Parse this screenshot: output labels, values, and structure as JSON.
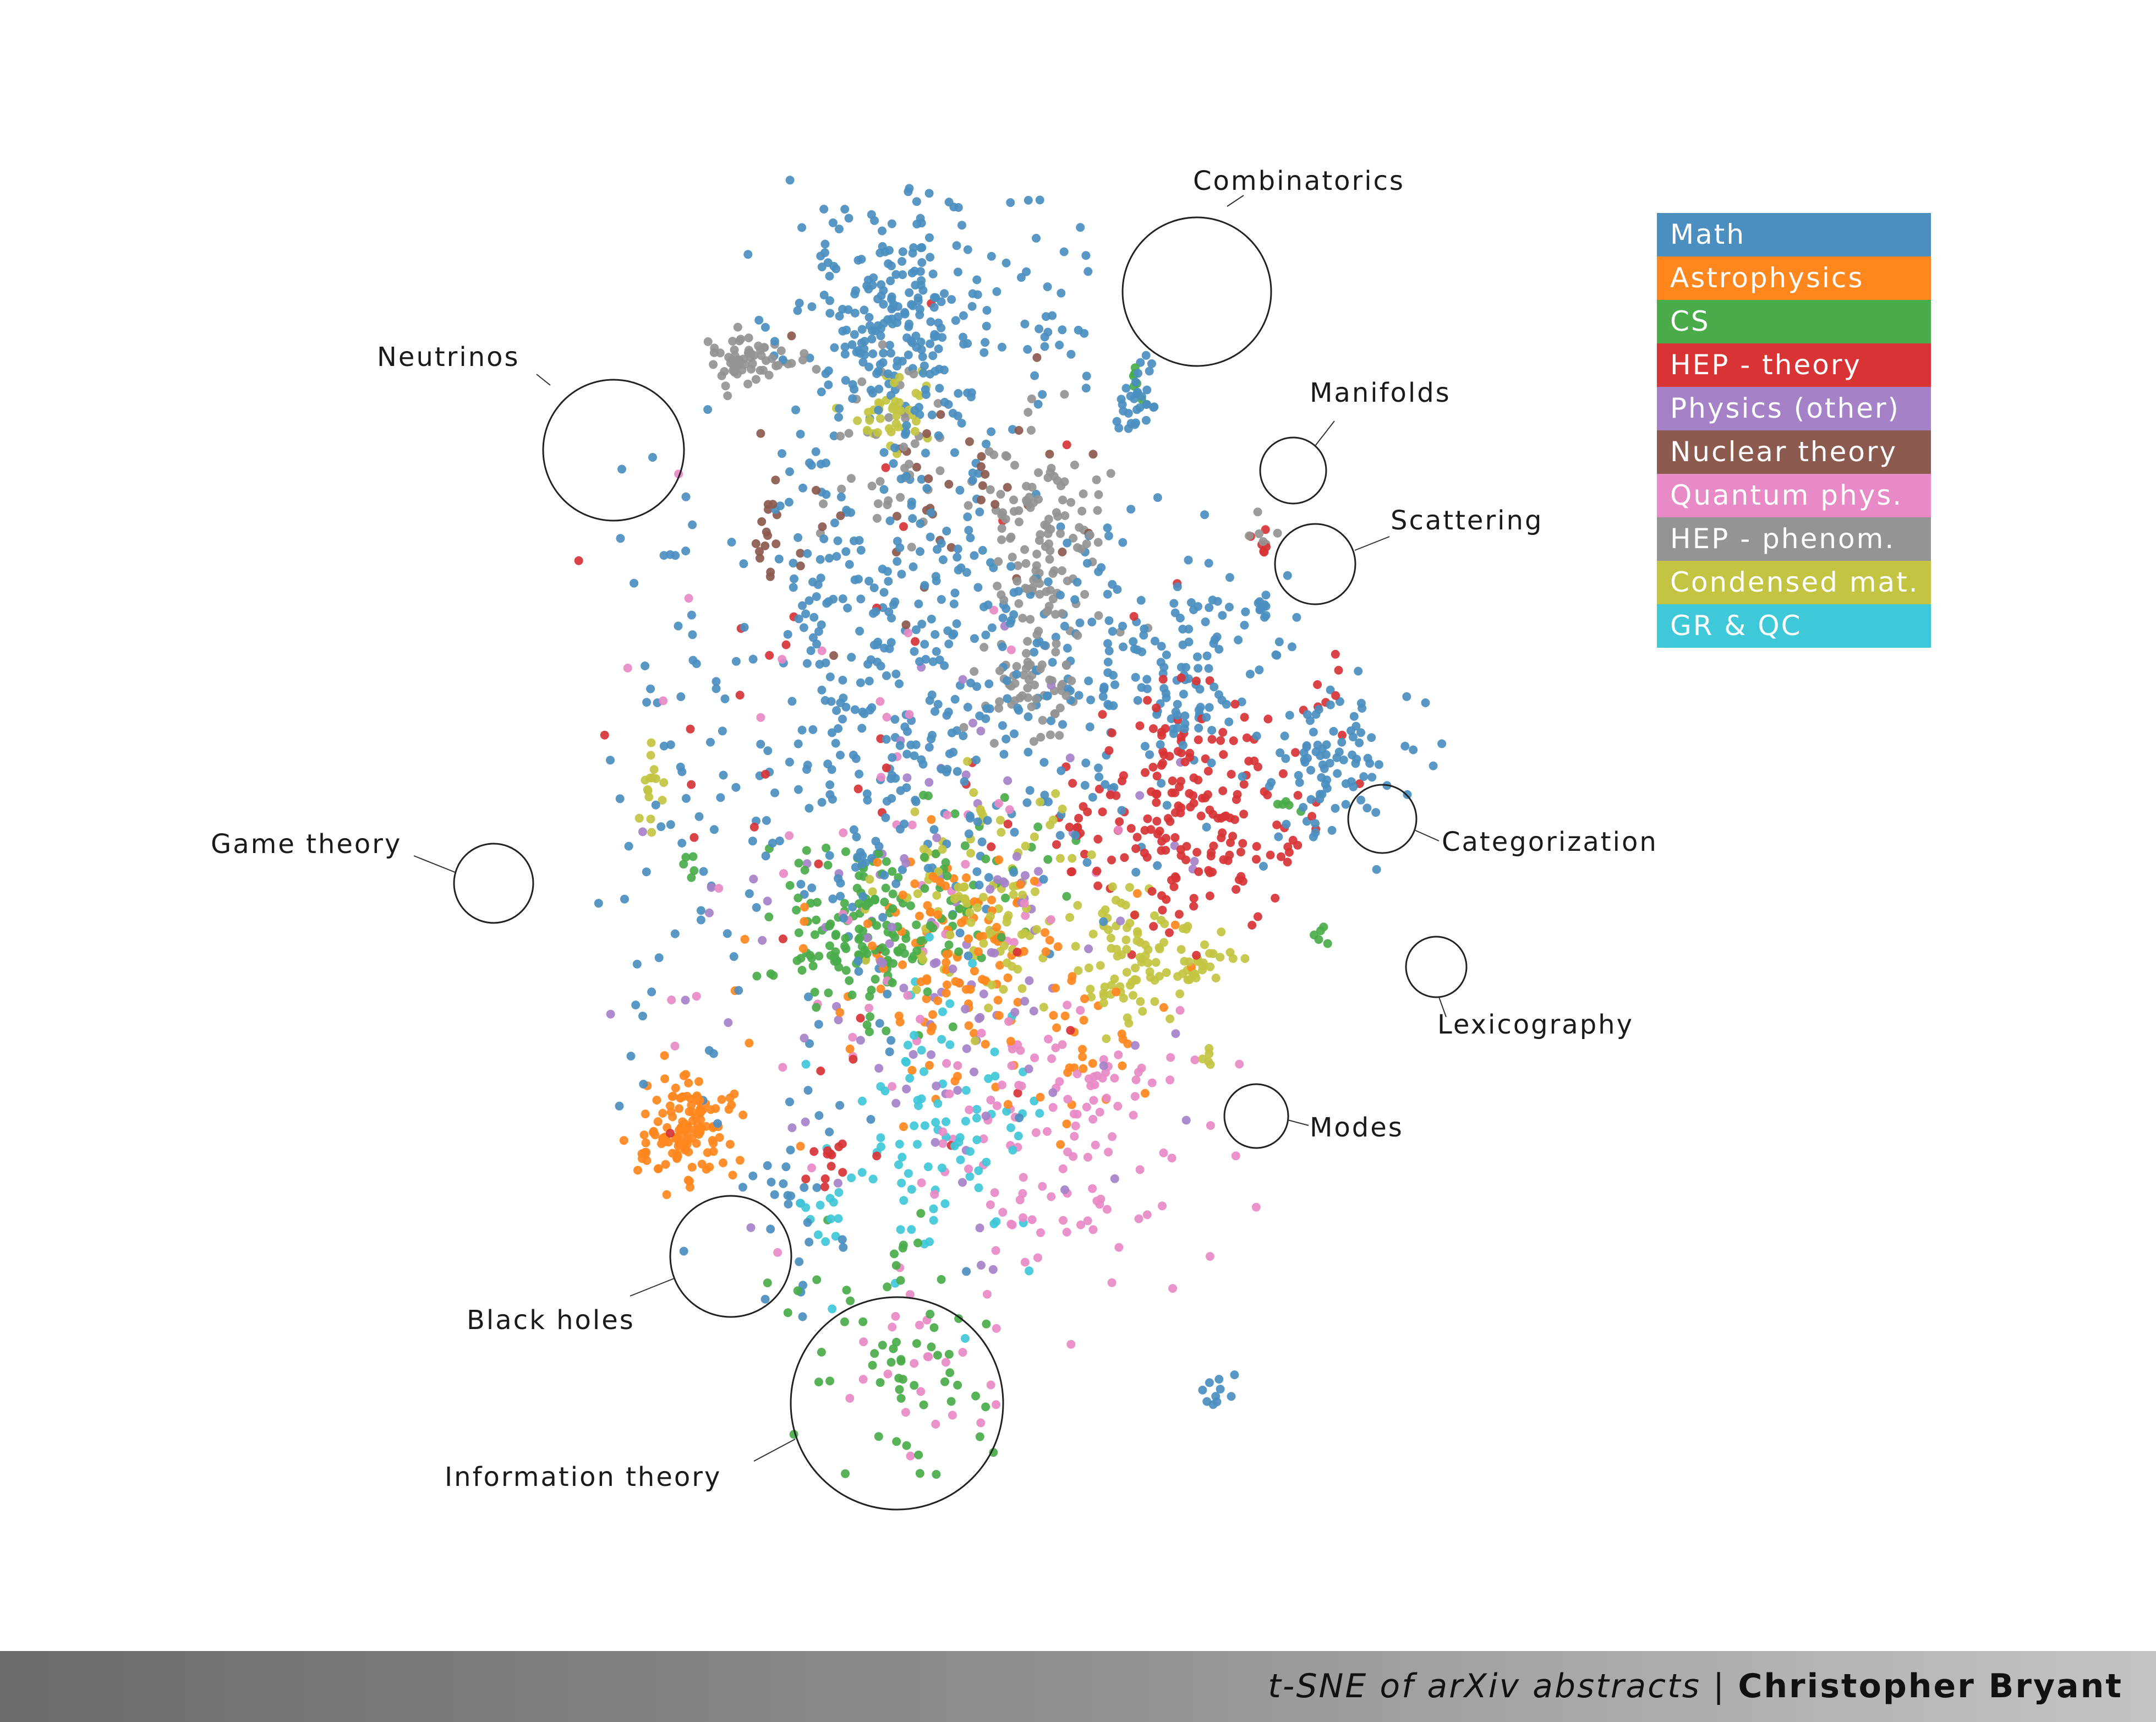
{
  "chart_data": {
    "type": "scatter",
    "xlim": [
      0,
      1
    ],
    "ylim": [
      0,
      1
    ],
    "grid": false,
    "legend_placement": "top-right",
    "legend": [
      {
        "name": "Math",
        "color": "#4b8fc0"
      },
      {
        "name": "Astrophysics",
        "color": "#ff871e"
      },
      {
        "name": "CS",
        "color": "#4aab4a"
      },
      {
        "name": "HEP - theory",
        "color": "#d83436"
      },
      {
        "name": "Physics (other)",
        "color": "#a582c8"
      },
      {
        "name": "Nuclear theory",
        "color": "#8c5a4e"
      },
      {
        "name": "Quantum phys.",
        "color": "#e88ac6"
      },
      {
        "name": "HEP - phenom.",
        "color": "#949494"
      },
      {
        "name": "Condensed mat.",
        "color": "#c3c442"
      },
      {
        "name": "GR & QC",
        "color": "#3fc8d8"
      }
    ],
    "annotations": [
      {
        "label": "Combinatorics"
      },
      {
        "label": "Neutrinos"
      },
      {
        "label": "Manifolds"
      },
      {
        "label": "Scattering"
      },
      {
        "label": "Categorization"
      },
      {
        "label": "Game theory"
      },
      {
        "label": "Lexicography"
      },
      {
        "label": "Modes"
      },
      {
        "label": "Black holes"
      },
      {
        "label": "Information theory"
      }
    ],
    "clusters": [
      {
        "series": "Math",
        "cx": 0.42,
        "cy": 0.62,
        "sx": 0.08,
        "sy": 0.12,
        "n": 420
      },
      {
        "series": "Math",
        "cx": 0.43,
        "cy": 0.88,
        "sx": 0.05,
        "sy": 0.05,
        "n": 220
      },
      {
        "series": "Math",
        "cx": 0.62,
        "cy": 0.6,
        "sx": 0.07,
        "sy": 0.06,
        "n": 140
      },
      {
        "series": "Math",
        "cx": 0.855,
        "cy": 0.56,
        "sx": 0.035,
        "sy": 0.03,
        "n": 90
      },
      {
        "series": "Math",
        "cx": 0.72,
        "cy": 0.66,
        "sx": 0.04,
        "sy": 0.02,
        "n": 40
      },
      {
        "series": "Math",
        "cx": 0.66,
        "cy": 0.815,
        "sx": 0.012,
        "sy": 0.014,
        "n": 30
      },
      {
        "series": "Math",
        "cx": 0.71,
        "cy": 0.605,
        "sx": 0.02,
        "sy": 0.014,
        "n": 25
      },
      {
        "series": "Math",
        "cx": 0.783,
        "cy": 0.672,
        "sx": 0.005,
        "sy": 0.005,
        "n": 8
      },
      {
        "series": "Math",
        "cx": 0.22,
        "cy": 0.55,
        "sx": 0.04,
        "sy": 0.12,
        "n": 60
      },
      {
        "series": "Math",
        "cx": 0.33,
        "cy": 0.26,
        "sx": 0.04,
        "sy": 0.04,
        "n": 30
      },
      {
        "series": "Math",
        "cx": 0.58,
        "cy": 0.88,
        "sx": 0.03,
        "sy": 0.04,
        "n": 30
      },
      {
        "series": "Math",
        "cx": 0.74,
        "cy": 0.108,
        "sx": 0.012,
        "sy": 0.008,
        "n": 10
      },
      {
        "series": "Astrophysics",
        "cx": 0.225,
        "cy": 0.295,
        "sx": 0.025,
        "sy": 0.018,
        "n": 130
      },
      {
        "series": "Astrophysics",
        "cx": 0.49,
        "cy": 0.43,
        "sx": 0.04,
        "sy": 0.03,
        "n": 80
      },
      {
        "series": "Astrophysics",
        "cx": 0.46,
        "cy": 0.39,
        "sx": 0.1,
        "sy": 0.05,
        "n": 50
      },
      {
        "series": "Astrophysics",
        "cx": 0.6,
        "cy": 0.36,
        "sx": 0.03,
        "sy": 0.03,
        "n": 25
      },
      {
        "series": "CS",
        "cx": 0.4,
        "cy": 0.44,
        "sx": 0.045,
        "sy": 0.03,
        "n": 140
      },
      {
        "series": "CS",
        "cx": 0.43,
        "cy": 0.13,
        "sx": 0.045,
        "sy": 0.05,
        "n": 60
      },
      {
        "series": "CS",
        "cx": 0.5,
        "cy": 0.47,
        "sx": 0.06,
        "sy": 0.04,
        "n": 40
      },
      {
        "series": "CS",
        "cx": 0.665,
        "cy": 0.838,
        "sx": 0.01,
        "sy": 0.01,
        "n": 6
      },
      {
        "series": "CS",
        "cx": 0.228,
        "cy": 0.483,
        "sx": 0.006,
        "sy": 0.006,
        "n": 5
      },
      {
        "series": "CS",
        "cx": 0.805,
        "cy": 0.531,
        "sx": 0.005,
        "sy": 0.005,
        "n": 5
      },
      {
        "series": "CS",
        "cx": 0.839,
        "cy": 0.434,
        "sx": 0.004,
        "sy": 0.004,
        "n": 5
      },
      {
        "series": "HEP - theory",
        "cx": 0.71,
        "cy": 0.52,
        "sx": 0.06,
        "sy": 0.04,
        "n": 200
      },
      {
        "series": "HEP - theory",
        "cx": 0.42,
        "cy": 0.55,
        "sx": 0.15,
        "sy": 0.15,
        "n": 40
      },
      {
        "series": "HEP - theory",
        "cx": 0.36,
        "cy": 0.27,
        "sx": 0.012,
        "sy": 0.012,
        "n": 12
      },
      {
        "series": "HEP - theory",
        "cx": 0.781,
        "cy": 0.71,
        "sx": 0.004,
        "sy": 0.006,
        "n": 6
      },
      {
        "series": "HEP - theory",
        "cx": 0.85,
        "cy": 0.6,
        "sx": 0.02,
        "sy": 0.02,
        "n": 8
      },
      {
        "series": "Physics (other)",
        "cx": 0.48,
        "cy": 0.42,
        "sx": 0.12,
        "sy": 0.1,
        "n": 120
      },
      {
        "series": "Nuclear theory",
        "cx": 0.47,
        "cy": 0.76,
        "sx": 0.08,
        "sy": 0.05,
        "n": 40
      },
      {
        "series": "Nuclear theory",
        "cx": 0.3,
        "cy": 0.735,
        "sx": 0.01,
        "sy": 0.018,
        "n": 15
      },
      {
        "series": "Quantum phys.",
        "cx": 0.59,
        "cy": 0.3,
        "sx": 0.06,
        "sy": 0.05,
        "n": 120
      },
      {
        "series": "Quantum phys.",
        "cx": 0.44,
        "cy": 0.12,
        "sx": 0.04,
        "sy": 0.04,
        "n": 25
      },
      {
        "series": "Quantum phys.",
        "cx": 0.45,
        "cy": 0.45,
        "sx": 0.15,
        "sy": 0.12,
        "n": 60
      },
      {
        "series": "HEP - phenom.",
        "cx": 0.57,
        "cy": 0.72,
        "sx": 0.03,
        "sy": 0.04,
        "n": 120
      },
      {
        "series": "HEP - phenom.",
        "cx": 0.56,
        "cy": 0.62,
        "sx": 0.025,
        "sy": 0.025,
        "n": 60
      },
      {
        "series": "HEP - phenom.",
        "cx": 0.29,
        "cy": 0.85,
        "sx": 0.025,
        "sy": 0.01,
        "n": 60
      },
      {
        "series": "HEP - phenom.",
        "cx": 0.42,
        "cy": 0.78,
        "sx": 0.03,
        "sy": 0.03,
        "n": 40
      },
      {
        "series": "HEP - phenom.",
        "cx": 0.779,
        "cy": 0.728,
        "sx": 0.008,
        "sy": 0.006,
        "n": 6
      },
      {
        "series": "Condensed mat.",
        "cx": 0.52,
        "cy": 0.46,
        "sx": 0.05,
        "sy": 0.035,
        "n": 110
      },
      {
        "series": "Condensed mat.",
        "cx": 0.655,
        "cy": 0.415,
        "sx": 0.03,
        "sy": 0.025,
        "n": 80
      },
      {
        "series": "Condensed mat.",
        "cx": 0.42,
        "cy": 0.815,
        "sx": 0.02,
        "sy": 0.015,
        "n": 40
      },
      {
        "series": "Condensed mat.",
        "cx": 0.725,
        "cy": 0.415,
        "sx": 0.015,
        "sy": 0.012,
        "n": 25
      },
      {
        "series": "Condensed mat.",
        "cx": 0.19,
        "cy": 0.54,
        "sx": 0.008,
        "sy": 0.015,
        "n": 15
      },
      {
        "series": "Condensed mat.",
        "cx": 0.732,
        "cy": 0.345,
        "sx": 0.004,
        "sy": 0.004,
        "n": 5
      },
      {
        "series": "GR & QC",
        "cx": 0.48,
        "cy": 0.3,
        "sx": 0.05,
        "sy": 0.05,
        "n": 90
      },
      {
        "series": "GR & QC",
        "cx": 0.36,
        "cy": 0.25,
        "sx": 0.015,
        "sy": 0.02,
        "n": 12
      }
    ]
  },
  "footer": {
    "subtitle": "t-SNE of arXiv abstracts",
    "separator": " | ",
    "author": "Christopher Bryant"
  }
}
